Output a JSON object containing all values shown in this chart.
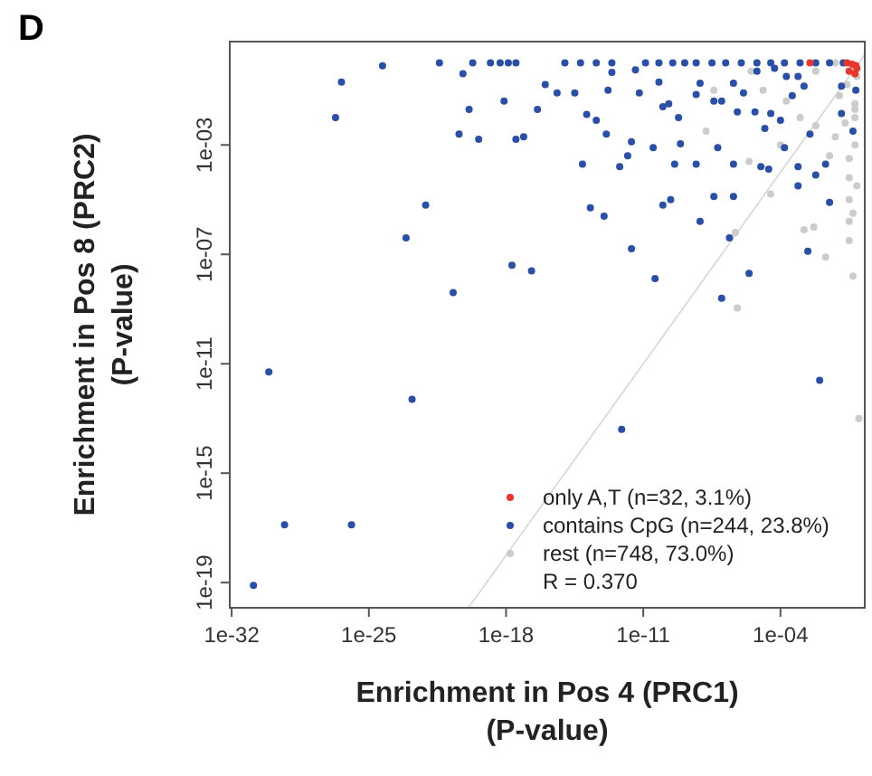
{
  "chart_data": {
    "type": "scatter",
    "xlabel": "Enrichment in Pos 4 (PRC1)\n(P-value)",
    "ylabel": "Enrichment in Pos 8 (PRC2)\n(P-value)",
    "log": "xy",
    "marker": "circle",
    "legend": "bottom right",
    "xlim": [
      8e-33,
      2
    ],
    "ylim": [
      1.2e-20,
      6
    ],
    "xticks": [
      {
        "value": 1e-32,
        "label": "1e-32"
      },
      {
        "value": 1e-25,
        "label": "1e-25"
      },
      {
        "value": 1e-18,
        "label": "1e-18"
      },
      {
        "value": 1e-11,
        "label": "1e-11"
      },
      {
        "value": 0.0001,
        "label": "1e-04"
      }
    ],
    "yticks": [
      {
        "value": 1e-19,
        "label": "1e-19"
      },
      {
        "value": 1e-15,
        "label": "1e-15"
      },
      {
        "value": 1e-11,
        "label": "1e-11"
      },
      {
        "value": 1e-07,
        "label": "1e-07"
      },
      {
        "value": 0.001,
        "label": "1e-03"
      }
    ],
    "annotations": [
      "D",
      "R = 0.370"
    ],
    "series": [
      {
        "name": "only A,T (n=32, 3.1%)",
        "color": "#e8382b",
        "x": [
          0.25,
          0.63,
          0.79,
          0.32,
          0.0032,
          0.7,
          0.45
        ],
        "values": [
          1,
          0.4,
          0.63,
          0.5,
          1,
          0.8,
          0.9
        ]
      },
      {
        "name": "contains CpG (n=244, 23.8%)",
        "color": "#2a4fa8",
        "x": [
          2e-27,
          4e-27,
          5e-25,
          4e-22,
          6.3e-21,
          2e-20,
          1.6e-19,
          5e-19,
          1.3e-18,
          3.2e-18,
          1.3e-20,
          4e-21,
          4e-20,
          7.9e-23,
          7.9e-24,
          2e-21,
          2e-18,
          2e-17,
          7.9e-19,
          3.2e-18,
          7.9e-18,
          4e-17,
          1e-16,
          4e-16,
          1e-15,
          6.3e-15,
          4e-14,
          2.5e-13,
          3.2e-15,
          1.3e-14,
          4e-14,
          7.9e-15,
          1.3e-13,
          2e-14,
          1e-13,
          2.5e-13,
          1.6e-13,
          2.5e-12,
          1.6e-12,
          6.3e-13,
          2.5e-12,
          4e-11,
          3.2e-11,
          1e-10,
          2.5e-10,
          4e-10,
          7.9e-10,
          4e-12,
          1.3e-11,
          6.3e-11,
          3.2e-10,
          1.3e-09,
          5e-09,
          6.3e-11,
          6.3e-12,
          1e-10,
          2e-10,
          6.3e-10,
          5e-09,
          7.9e-09,
          5e-09,
          7.9e-09,
          4e-08,
          6.3e-08,
          4e-08,
          1e-07,
          1e-07,
          2.5e-07,
          4e-07,
          4e-07,
          6.3e-07,
          5e-06,
          4e-07,
          2.5e-06,
          1e-05,
          2.5e-05,
          1.6e-05,
          0.0001,
          0.00016,
          0.00079,
          0.00079,
          0.0025,
          0.0063,
          0.02,
          0.032,
          0.0032,
          0.0004,
          0.0002,
          0.0016,
          0.13,
          0.7,
          0.13,
          0.5,
          3.2e-08,
          1.6e-07,
          1e-06,
          6.3e-06,
          3.2e-05,
          0.00016,
          0.001,
          0.0063,
          0.032,
          0.16,
          6.3e-06,
          5e-05,
          0.00079,
          1.3e-06,
          3.2e-05,
          7.9e-31,
          5e-30,
          1.3e-26,
          1.3e-31,
          1.6e-23,
          7.9e-13,
          0.01
        ],
        "values": [
          0.01,
          0.2,
          0.79,
          1,
          0.4,
          1,
          1,
          1,
          1,
          1,
          0.02,
          0.0025,
          0.0016,
          6.3e-06,
          4e-07,
          4e-09,
          4e-08,
          2.5e-08,
          0.04,
          0.0016,
          0.002,
          0.02,
          0.16,
          0.079,
          1,
          1,
          1,
          1,
          0.079,
          0.013,
          0.0079,
          0.0002,
          0.0025,
          5e-06,
          2.5e-06,
          0.45,
          0.1,
          0.0013,
          0.0004,
          0.00016,
          1.6e-07,
          1.3e-08,
          0.00079,
          6.3e-06,
          1e-05,
          0.0002,
          0.0011,
          0.56,
          1,
          1,
          1,
          1,
          1,
          0.2,
          0.079,
          0.025,
          0.032,
          0.01,
          0.07,
          0.18,
          0.0002,
          1.6e-06,
          1.3e-05,
          0.00079,
          0.04,
          0.04,
          2.5e-09,
          4e-07,
          1.3e-05,
          0.0002,
          0.016,
          0.016,
          0.18,
          2e-08,
          0.00016,
          0.00013,
          0.004,
          0.0079,
          0.00079,
          0.00016,
          3.2e-05,
          1.3e-07,
          7.9e-05,
          0.0002,
          7.9e-06,
          0.0025,
          0.063,
          0.32,
          0.14,
          0.14,
          0.1,
          0.014,
          0.0032,
          1,
          1,
          1,
          1,
          1,
          1,
          1,
          1,
          1,
          1,
          0.5,
          0.63,
          0.32,
          0.079,
          0.014,
          5e-12,
          1.3e-17,
          1.3e-17,
          7.9e-20,
          5e-13,
          4e-14,
          2.5e-12
        ]
      },
      {
        "name": "rest (n=748, 73.0%)",
        "color": "#cccccc",
        "x": [
          6.3e-07,
          1,
          0.02,
          0.5,
          0.0016,
          0.005,
          3.2e-05,
          5e-07,
          1.6e-08,
          2.5e-06,
          4e-08,
          0.32,
          0.32,
          0.32,
          0.32,
          0.32,
          0.63,
          0.63,
          0.63,
          0.63,
          0.063,
          0.032,
          0.0063,
          0.0002,
          1.3e-05,
          3.2e-06,
          0.0063,
          0.063,
          0.79,
          0.79,
          0.5,
          0.1,
          0.2,
          0.25,
          0.001,
          0.0001
        ],
        "values": [
          1.1e-09,
          1e-13,
          7.9e-08,
          1.6e-08,
          7.9e-07,
          1e-06,
          1.6e-05,
          6.3e-07,
          0.0032,
          0.00025,
          0.1,
          0.00032,
          6.3e-05,
          1e-05,
          1.6e-06,
          3.2e-07,
          0.032,
          0.01,
          0.02,
          0.001,
          0.002,
          0.0004,
          0.005,
          0.04,
          0.1,
          0.5,
          0.5,
          1,
          0.32,
          3.2e-05,
          3.2e-06,
          0.063,
          0.0063,
          0.16,
          0.01,
          0.001
        ]
      },
      {
        "type": "line",
        "marker": "none",
        "color": "#dddddd",
        "x": [
          1.2e-20,
          2
        ],
        "values": [
          1.2e-20,
          2
        ]
      }
    ]
  }
}
